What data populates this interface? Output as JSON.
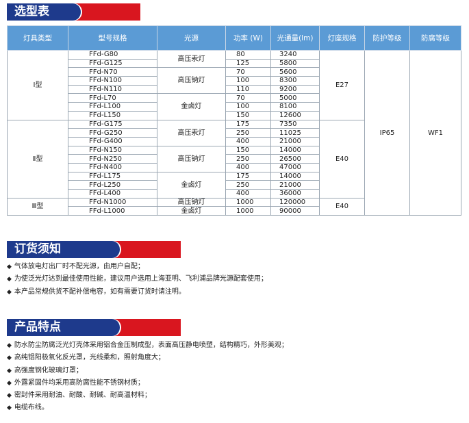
{
  "sections": {
    "selection": "选型表",
    "ordering": "订货须知",
    "features": "产品特点"
  },
  "colors": {
    "header_blue": "#1e3a8c",
    "header_red": "#d9161f",
    "table_header": "#5b9bd5"
  },
  "table": {
    "headers": [
      "灯具类型",
      "型号规格",
      "光源",
      "功率 (W)",
      "光通量(lm)",
      "灯座规格",
      "防护等级",
      "防腐等级"
    ],
    "protection": "IP65",
    "corrosion": "WF1",
    "types": [
      {
        "label": "Ⅰ型",
        "socket": "E27",
        "sources": [
          {
            "name": "高压汞灯",
            "rows": [
              [
                "FFd-G80",
                "80",
                "3240"
              ],
              [
                "FFd-G125",
                "125",
                "5800"
              ]
            ]
          },
          {
            "name": "高压钠灯",
            "rows": [
              [
                "FFd-N70",
                "70",
                "5600"
              ],
              [
                "FFd-N100",
                "100",
                "8300"
              ],
              [
                "FFd-N110",
                "110",
                "9200"
              ]
            ]
          },
          {
            "name": "金卤灯",
            "rows": [
              [
                "FFd-L70",
                "70",
                "5000"
              ],
              [
                "FFd-L100",
                "100",
                "8100"
              ],
              [
                "FFd-L150",
                "150",
                "12600"
              ]
            ]
          }
        ]
      },
      {
        "label": "Ⅱ型",
        "socket": "E40",
        "sources": [
          {
            "name": "高压汞灯",
            "rows": [
              [
                "FFd-G175",
                "175",
                "7350"
              ],
              [
                "FFd-G250",
                "250",
                "11025"
              ],
              [
                "FFd-G400",
                "400",
                "21000"
              ]
            ]
          },
          {
            "name": "高压钠灯",
            "rows": [
              [
                "FFd-N150",
                "150",
                "14000"
              ],
              [
                "FFd-N250",
                "250",
                "26500"
              ],
              [
                "FFd-N400",
                "400",
                "47000"
              ]
            ]
          },
          {
            "name": "金卤灯",
            "rows": [
              [
                "FFd-L175",
                "175",
                "14000"
              ],
              [
                "FFd-L250",
                "250",
                "21000"
              ],
              [
                "FFd-L400",
                "400",
                "36000"
              ]
            ]
          }
        ]
      },
      {
        "label": "Ⅲ型",
        "socket": "E40",
        "sources": [
          {
            "name": "高压钠灯",
            "rows": [
              [
                "FFd-N1000",
                "1000",
                "120000"
              ]
            ]
          },
          {
            "name": "金卤灯",
            "rows": [
              [
                "FFd-L1000",
                "1000",
                "90000"
              ]
            ]
          }
        ]
      }
    ]
  },
  "bullet": "◆",
  "ordering_notes": [
    "气体放电灯出厂时不配光源，由用户自配；",
    "为使泛光灯达到最佳使用性能，建议用户选用上海亚明、飞利浦品牌光源配套使用；",
    "本产品常规供货不配补偿电容，如有需要订货时请注明。"
  ],
  "features": [
    "防水防尘防腐泛光灯壳体采用铝合金压制成型，表面高压静电喷塑，结构精巧，外形美观；",
    "高纯铝阳极氧化反光罩，光线柔和，照射角度大；",
    "高强度钢化玻璃灯罩；",
    "外露紧固件均采用高防腐性能不锈钢材质；",
    "密封件采用耐油、耐酸、耐碱、耐高温材料；",
    "电缆布线。"
  ]
}
